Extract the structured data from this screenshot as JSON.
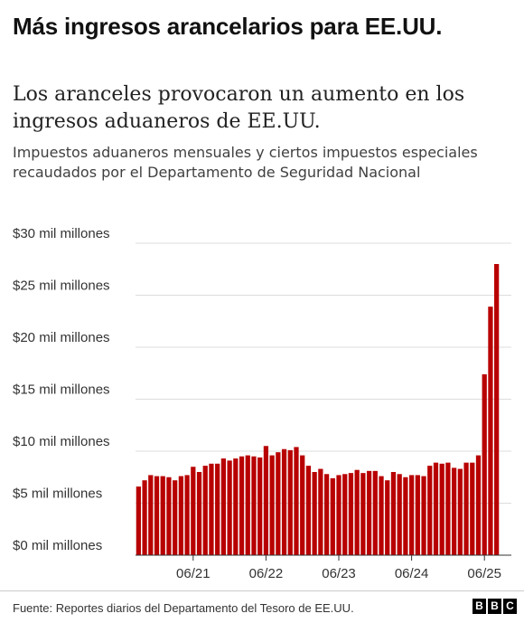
{
  "header": {
    "headline": "Más ingresos arancelarios para EE.UU."
  },
  "chart_data": {
    "type": "bar",
    "title": "Los aranceles provocaron un aumento en los ingresos aduaneros de EE.UU.",
    "subtitle": "Impuestos aduaneros mensuales y ciertos impuestos especiales recaudados por el Departamento de Seguridad Nacional",
    "ylim": [
      0,
      30
    ],
    "yticks": [
      0,
      5,
      10,
      15,
      20,
      25,
      30
    ],
    "ytick_labels": [
      "$0 mil millones",
      "$5 mil millones",
      "$10 mil millones",
      "$15 mil millones",
      "$20 mil millones",
      "$25 mil millones",
      "$30 mil millones"
    ],
    "xtick_labels": [
      "06/21",
      "06/22",
      "06/23",
      "06/24",
      "06/25"
    ],
    "xtick_indices": [
      9,
      21,
      33,
      45,
      57
    ],
    "bar_color": "#b80000",
    "grid": true,
    "values": [
      6.6,
      7.2,
      7.7,
      7.6,
      7.6,
      7.5,
      7.2,
      7.6,
      7.7,
      8.5,
      8.0,
      8.6,
      8.8,
      8.8,
      9.3,
      9.1,
      9.3,
      9.5,
      9.6,
      9.5,
      9.4,
      10.5,
      9.6,
      9.9,
      10.2,
      10.1,
      10.4,
      9.6,
      8.6,
      8.0,
      8.3,
      7.8,
      7.4,
      7.7,
      7.8,
      7.9,
      8.2,
      7.9,
      8.1,
      8.1,
      7.6,
      7.2,
      8.0,
      7.8,
      7.5,
      7.7,
      7.7,
      7.6,
      8.6,
      8.9,
      8.8,
      8.9,
      8.4,
      8.3,
      8.9,
      8.9,
      9.6,
      17.4,
      23.9,
      28.0
    ]
  },
  "footer": {
    "source": "Fuente: Reportes diarios del Departamento del Tesoro de EE.UU.",
    "logo": [
      "B",
      "B",
      "C"
    ]
  }
}
